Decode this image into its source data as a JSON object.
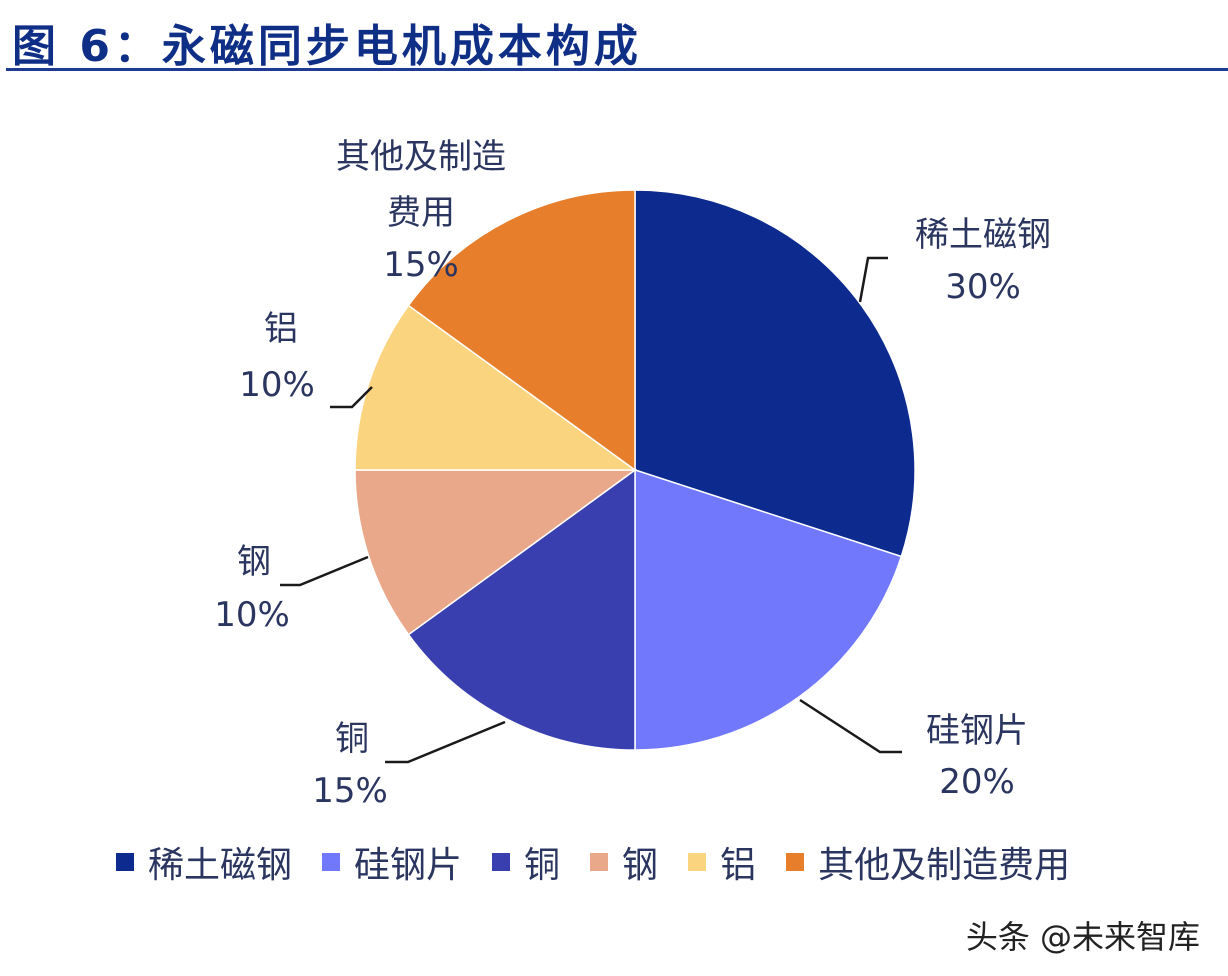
{
  "title": "图 6：永磁同步电机成本构成",
  "watermark": "头条 @未来智库",
  "colors": {
    "rare_earth": "#0d2a8e",
    "silicon_steel": "#7178fc",
    "copper": "#3a3fb0",
    "steel": "#e9a88a",
    "aluminum": "#fbd47f",
    "other": "#e67e2b",
    "label_text": "#2b3660",
    "leader": "#1a1a1a",
    "title": "#0f2e86"
  },
  "chart_data": {
    "type": "pie",
    "title": "永磁同步电机成本构成",
    "start_angle_deg": 0,
    "direction": "clockwise",
    "legend_position": "bottom",
    "slices": [
      {
        "label": "稀土磁钢",
        "value": 30,
        "value_label": "30%",
        "color": "#0d2a8e"
      },
      {
        "label": "硅钢片",
        "value": 20,
        "value_label": "20%",
        "color": "#7178fc"
      },
      {
        "label": "铜",
        "value": 15,
        "value_label": "15%",
        "color": "#3a3fb0"
      },
      {
        "label": "钢",
        "value": 10,
        "value_label": "10%",
        "color": "#e9a88a"
      },
      {
        "label": "铝",
        "value": 10,
        "value_label": "10%",
        "color": "#fbd47f"
      },
      {
        "label": "其他及制造费用",
        "value": 15,
        "value_label": "15%",
        "color": "#e67e2b",
        "label_lines": [
          "其他及制造",
          "费用"
        ]
      }
    ]
  }
}
